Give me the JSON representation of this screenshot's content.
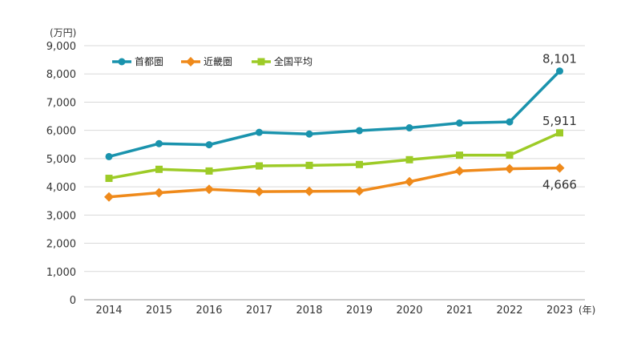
{
  "chart_data": {
    "type": "line",
    "title": "",
    "xlabel": "",
    "ylabel": "",
    "y_unit_label": "(万円)",
    "x_unit_label": "(年)",
    "categories": [
      "2014",
      "2015",
      "2016",
      "2017",
      "2018",
      "2019",
      "2020",
      "2021",
      "2022",
      "2023"
    ],
    "ylim": [
      0,
      9000
    ],
    "y_ticks": [
      0,
      1000,
      2000,
      3000,
      4000,
      5000,
      6000,
      7000,
      8000,
      9000
    ],
    "y_tick_labels": [
      "0",
      "1,000",
      "2,000",
      "3,000",
      "4,000",
      "5,000",
      "6,000",
      "7,000",
      "8,000",
      "9,000"
    ],
    "grid": true,
    "legend_position": "top-left",
    "series": [
      {
        "name": "首都圏",
        "color": "#1a93ad",
        "marker": "circle",
        "values": [
          5070,
          5530,
          5490,
          5930,
          5870,
          5990,
          6090,
          6260,
          6300,
          8101
        ]
      },
      {
        "name": "近畿圏",
        "color": "#ef8a1b",
        "marker": "diamond",
        "values": [
          3640,
          3790,
          3910,
          3830,
          3840,
          3850,
          4180,
          4560,
          4640,
          4666
        ]
      },
      {
        "name": "全国平均",
        "color": "#9dcb27",
        "marker": "square",
        "values": [
          4300,
          4620,
          4560,
          4740,
          4760,
          4790,
          4960,
          5120,
          5120,
          5911
        ]
      }
    ],
    "annotations": [
      {
        "series": "首都圏",
        "index": 9,
        "text": "8,101"
      },
      {
        "series": "全国平均",
        "index": 9,
        "text": "5,911"
      },
      {
        "series": "近畿圏",
        "index": 9,
        "text": "4,666"
      }
    ]
  }
}
